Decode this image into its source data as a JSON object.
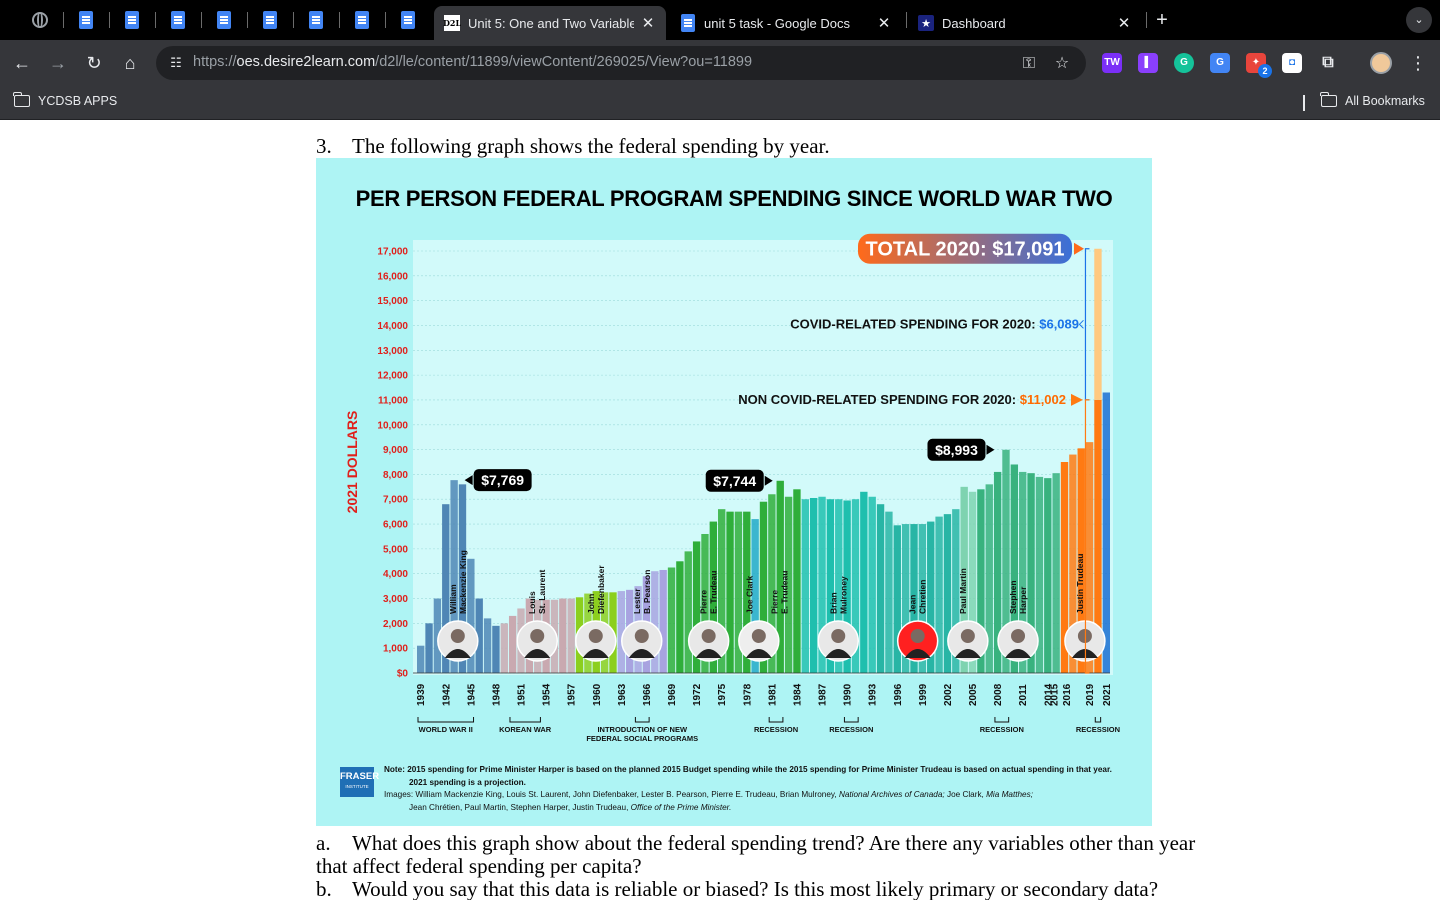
{
  "browser": {
    "tabs": [
      {
        "title": "Unit 5: One and Two Variable",
        "favicon": "D2L"
      },
      {
        "title": "unit 5 task - Google Docs",
        "favicon": "google-docs-icon"
      },
      {
        "title": "Dashboard",
        "favicon": "star-icon"
      }
    ],
    "url_scheme": "https://",
    "url_host": "oes.desire2learn.com",
    "url_path": "/d2l/le/content/11899/viewContent/269025/View?ou=11899",
    "bookmarks": {
      "left": "YCDSB APPS",
      "right": "All Bookmarks"
    },
    "extension_badge": "2"
  },
  "document": {
    "q3_num": "3.",
    "q3_text": "The following graph shows the federal spending by year.",
    "qa_num": "a.",
    "qa_text": "What does this graph show about the federal spending trend? Are there any variables other than year",
    "qa_text2": "that affect federal spending per capita?",
    "qb_num": "b.",
    "qb_text": "Would you say that this data is reliable or biased? Is this most likely primary or secondary data?"
  },
  "infographic": {
    "background": "#aef4f4",
    "total_callout": "TOTAL 2020: $17,091",
    "covid_label": "COVID-RELATED SPENDING FOR 2020:",
    "covid_value": "$6,089",
    "noncovid_label": "NON COVID-RELATED SPENDING FOR 2020:",
    "noncovid_value": "$11,002",
    "peak_labels": [
      "$7,769",
      "$7,744",
      "$8,993"
    ],
    "events": [
      {
        "label": "WORLD WAR II"
      },
      {
        "label": "KOREAN WAR"
      },
      {
        "label": "INTRODUCTION OF NEW",
        "label2": "FEDERAL SOCIAL PROGRAMS"
      },
      {
        "label": "RECESSION"
      },
      {
        "label": "RECESSION"
      },
      {
        "label": "RECESSION"
      },
      {
        "label": "RECESSION"
      }
    ],
    "logo": "FRASER",
    "logo_sub": "INSTITUTE",
    "note_bold": "Note:",
    "note_line1": "2015 spending for Prime Minister Harper is based on the planned 2015 Budget spending while the 2015 spending for Prime Minister Trudeau is based on actual spending in that year.",
    "note_line2": "2021 spending is a projection.",
    "images_line1": "Images: William Mackenzie King, Louis St. Laurent, John Diefenbaker, Lester B. Pearson, Pierre E. Trudeau, Brian Mulroney,",
    "images_italic1": "National Archives of Canada;",
    "images_mid": "Joe Clark,",
    "images_italic2": "Mia Matthes;",
    "images_line2": "Jean Chrétien, Paul Martin, Stephen Harper, Justin Trudeau,",
    "images_italic3": "Office of the Prime Minister."
  },
  "chart_data": {
    "type": "bar",
    "title": "PER PERSON FEDERAL PROGRAM SPENDING SINCE WORLD WAR TWO",
    "ylabel": "2021 DOLLARS",
    "ylim": [
      0,
      17000
    ],
    "y_ticks": [
      "$0",
      "1,000",
      "2,000",
      "3,000",
      "4,000",
      "5,000",
      "6,000",
      "7,000",
      "8,000",
      "9,000",
      "10,000",
      "11,000",
      "12,000",
      "13,000",
      "14,000",
      "15,000",
      "16,000",
      "17,000"
    ],
    "x_ticks": [
      "1939",
      "1942",
      "1945",
      "1948",
      "1951",
      "1954",
      "1957",
      "1960",
      "1963",
      "1966",
      "1969",
      "1972",
      "1975",
      "1978",
      "1981",
      "1984",
      "1987",
      "1990",
      "1993",
      "1996",
      "1999",
      "2002",
      "2005",
      "2008",
      "2011",
      "2014",
      "2015",
      "2016",
      "2019",
      "2021"
    ],
    "prime_ministers": [
      {
        "name": "William Mackenzie King",
        "label1": "William",
        "label2": "Mackenzie King",
        "color": "#4f86b5"
      },
      {
        "name": "Louis St. Laurent",
        "label1": "Louis",
        "label2": "St. Laurent",
        "color": "#c9a9b0"
      },
      {
        "name": "John Diefenbaker",
        "label1": "John",
        "label2": "Diefenbaker",
        "color": "#8ccf1e"
      },
      {
        "name": "Lester B. Pearson",
        "label1": "Lester",
        "label2": "B. Pearson",
        "color": "#a8a3e0"
      },
      {
        "name": "Pierre E. Trudeau",
        "label1": "Pierre",
        "label2": "E. Trudeau",
        "color": "#2fae3a"
      },
      {
        "name": "Joe Clark",
        "label1": "Joe Clark",
        "label2": "",
        "color": "#21a9c7"
      },
      {
        "name": "Pierre E. Trudeau",
        "label1": "Pierre",
        "label2": "E. Trudeau",
        "color": "#2fae3a"
      },
      {
        "name": "Brian Mulroney",
        "label1": "Brian",
        "label2": "Mulroney",
        "color": "#1fbfae"
      },
      {
        "name": "Jean Chretien",
        "label1": "Jean",
        "label2": "Chretien",
        "color": "#28b5a5"
      },
      {
        "name": "Paul Martin",
        "label1": "Paul Martin",
        "label2": "",
        "color": "#7ed3b0"
      },
      {
        "name": "Stephen Harper",
        "label1": "Stephen",
        "label2": "Harper",
        "color": "#38b27e"
      },
      {
        "name": "Justin Trudeau",
        "label1": "Justin Trudeau",
        "label2": "",
        "color": "#ff7a12"
      }
    ],
    "series": [
      {
        "name": "Spending per person",
        "values": [
          [
            1939,
            1100
          ],
          [
            1940,
            2000
          ],
          [
            1941,
            3000
          ],
          [
            1942,
            6800
          ],
          [
            1943,
            7769
          ],
          [
            1944,
            7600
          ],
          [
            1945,
            4600
          ],
          [
            1946,
            3000
          ],
          [
            1947,
            2200
          ],
          [
            1948,
            1900
          ],
          [
            1949,
            2000
          ],
          [
            1950,
            2300
          ],
          [
            1951,
            2600
          ],
          [
            1952,
            3000
          ],
          [
            1953,
            2950
          ],
          [
            1954,
            2950
          ],
          [
            1955,
            2950
          ],
          [
            1956,
            3000
          ],
          [
            1957,
            3000
          ],
          [
            1958,
            3050
          ],
          [
            1959,
            3200
          ],
          [
            1960,
            3300
          ],
          [
            1961,
            3250
          ],
          [
            1962,
            3250
          ],
          [
            1963,
            3300
          ],
          [
            1964,
            3350
          ],
          [
            1965,
            3500
          ],
          [
            1966,
            3900
          ],
          [
            1967,
            4100
          ],
          [
            1968,
            4150
          ],
          [
            1969,
            4250
          ],
          [
            1970,
            4500
          ],
          [
            1971,
            4900
          ],
          [
            1972,
            5300
          ],
          [
            1973,
            5600
          ],
          [
            1974,
            6100
          ],
          [
            1975,
            6600
          ],
          [
            1976,
            6500
          ],
          [
            1977,
            6500
          ],
          [
            1978,
            6500
          ],
          [
            1979,
            6200
          ],
          [
            1980,
            6900
          ],
          [
            1981,
            7200
          ],
          [
            1982,
            7744
          ],
          [
            1983,
            7100
          ],
          [
            1984,
            7400
          ],
          [
            1985,
            7000
          ],
          [
            1986,
            7050
          ],
          [
            1987,
            7100
          ],
          [
            1988,
            7000
          ],
          [
            1989,
            7000
          ],
          [
            1990,
            6950
          ],
          [
            1991,
            7000
          ],
          [
            1992,
            7300
          ],
          [
            1993,
            7100
          ],
          [
            1994,
            6800
          ],
          [
            1995,
            6500
          ],
          [
            1996,
            5950
          ],
          [
            1997,
            6000
          ],
          [
            1998,
            6000
          ],
          [
            1999,
            6000
          ],
          [
            2000,
            6100
          ],
          [
            2001,
            6300
          ],
          [
            2002,
            6400
          ],
          [
            2003,
            6600
          ],
          [
            2004,
            7500
          ],
          [
            2005,
            7300
          ],
          [
            2006,
            7400
          ],
          [
            2007,
            7600
          ],
          [
            2008,
            8100
          ],
          [
            2009,
            8993
          ],
          [
            2010,
            8400
          ],
          [
            2011,
            8100
          ],
          [
            2012,
            8050
          ],
          [
            2013,
            7900
          ],
          [
            2014,
            7850
          ],
          [
            2015,
            8050
          ],
          [
            2016,
            8500
          ],
          [
            2017,
            8800
          ],
          [
            2018,
            9050
          ],
          [
            2019,
            9300
          ],
          [
            2020,
            17091
          ],
          [
            2021,
            11300
          ]
        ]
      },
      {
        "name": "COVID-related spending (2020)",
        "values": [
          [
            2020,
            6089
          ]
        ]
      },
      {
        "name": "Non COVID-related spending (2020)",
        "values": [
          [
            2020,
            11002
          ]
        ]
      }
    ],
    "annotations": [
      {
        "x": 1943,
        "y": 7769,
        "text": "$7,769"
      },
      {
        "x": 1982,
        "y": 7744,
        "text": "$7,744"
      },
      {
        "x": 2009,
        "y": 8993,
        "text": "$8,993"
      }
    ],
    "grid": true
  }
}
